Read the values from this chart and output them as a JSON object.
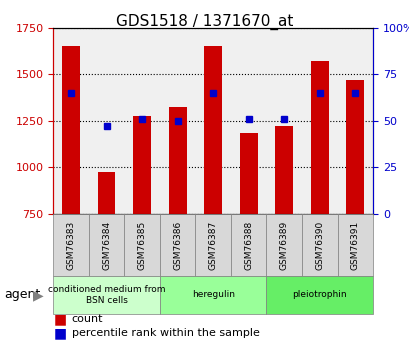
{
  "title": "GDS1518 / 1371670_at",
  "samples": [
    "GSM76383",
    "GSM76384",
    "GSM76385",
    "GSM76386",
    "GSM76387",
    "GSM76388",
    "GSM76389",
    "GSM76390",
    "GSM76391"
  ],
  "counts": [
    1650,
    975,
    1275,
    1325,
    1650,
    1185,
    1220,
    1570,
    1470
  ],
  "percentiles": [
    65,
    47,
    51,
    50,
    65,
    51,
    51,
    65,
    65
  ],
  "baseline": 750,
  "ylim_left": [
    750,
    1750
  ],
  "ylim_right": [
    0,
    100
  ],
  "yticks_left": [
    750,
    1000,
    1250,
    1500,
    1750
  ],
  "yticks_right": [
    0,
    25,
    50,
    75,
    100
  ],
  "bar_color": "#cc0000",
  "dot_color": "#0000cc",
  "groups": [
    {
      "label": "conditioned medium from\nBSN cells",
      "start": 0,
      "end": 3,
      "color": "#ccffcc"
    },
    {
      "label": "heregulin",
      "start": 3,
      "end": 6,
      "color": "#99ff99"
    },
    {
      "label": "pleiotrophin",
      "start": 6,
      "end": 9,
      "color": "#66ee66"
    }
  ],
  "agent_label": "agent",
  "legend_count_label": "count",
  "legend_percentile_label": "percentile rank within the sample",
  "grid_color": "#888888",
  "background_color": "#f0f0f0"
}
